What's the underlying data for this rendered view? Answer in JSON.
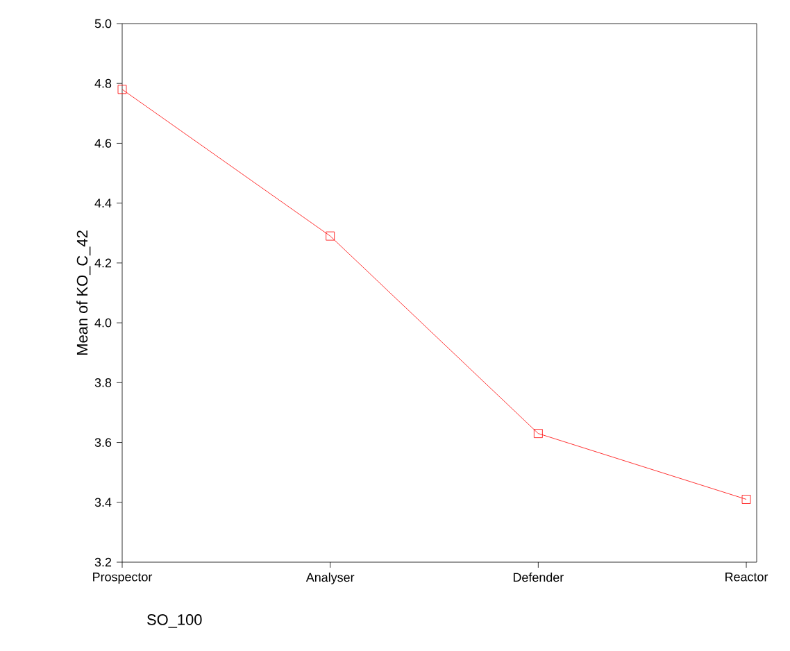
{
  "chart_data": {
    "type": "line",
    "xlabel": "SO_100",
    "ylabel": "Mean of KO_C_42",
    "categories": [
      "Prospector",
      "Analyser",
      "Defender",
      "Reactor"
    ],
    "values": [
      4.78,
      4.29,
      3.63,
      3.41
    ],
    "color": "#ff0000",
    "marker": "square",
    "ylim": [
      3.2,
      5.0
    ],
    "yticks": [
      {
        "value": 3.2,
        "label": "3.2"
      },
      {
        "value": 3.4,
        "label": "3.4"
      },
      {
        "value": 3.6,
        "label": "3.6"
      },
      {
        "value": 3.8,
        "label": "3.8"
      },
      {
        "value": 4.0,
        "label": "4.0"
      },
      {
        "value": 4.2,
        "label": "4.2"
      },
      {
        "value": 4.4,
        "label": "4.4"
      },
      {
        "value": 4.6,
        "label": "4.6"
      },
      {
        "value": 4.8,
        "label": "4.8"
      },
      {
        "value": 5.0,
        "label": "5.0"
      }
    ],
    "grid": false
  }
}
